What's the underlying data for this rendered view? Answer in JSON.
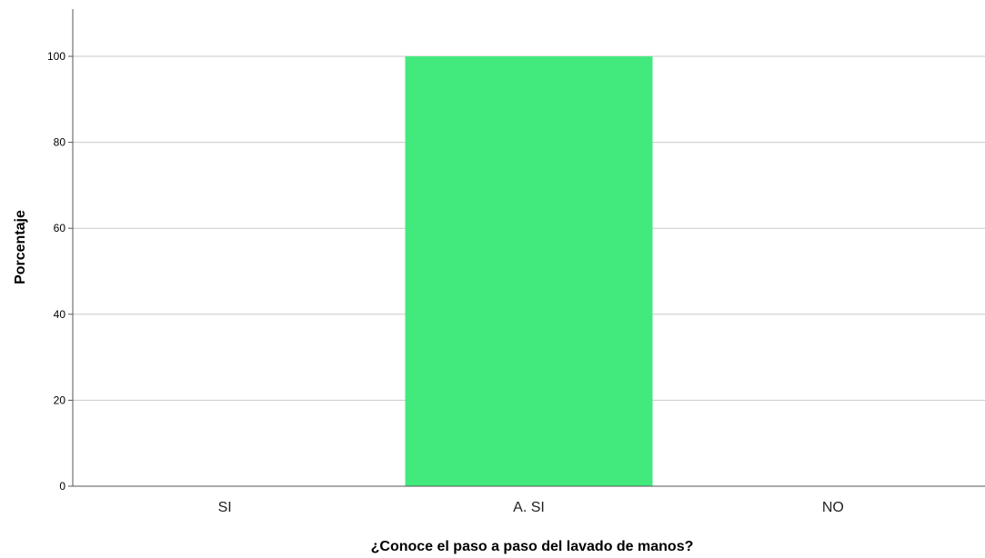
{
  "chart_data": {
    "type": "bar",
    "title": "",
    "xlabel": "¿Conoce el paso a paso del lavado de manos?",
    "ylabel": "Porcentaje",
    "categories": [
      "SI",
      "A. SI",
      "NO"
    ],
    "values": [
      0,
      100,
      0
    ],
    "ylim": [
      0,
      110
    ],
    "yticks": [
      0,
      20,
      40,
      60,
      80,
      100
    ],
    "grid": true,
    "legend": "none",
    "colors": {
      "bar": "#42EA7E",
      "grid": "#C8C8C8",
      "axis": "#555555"
    }
  }
}
